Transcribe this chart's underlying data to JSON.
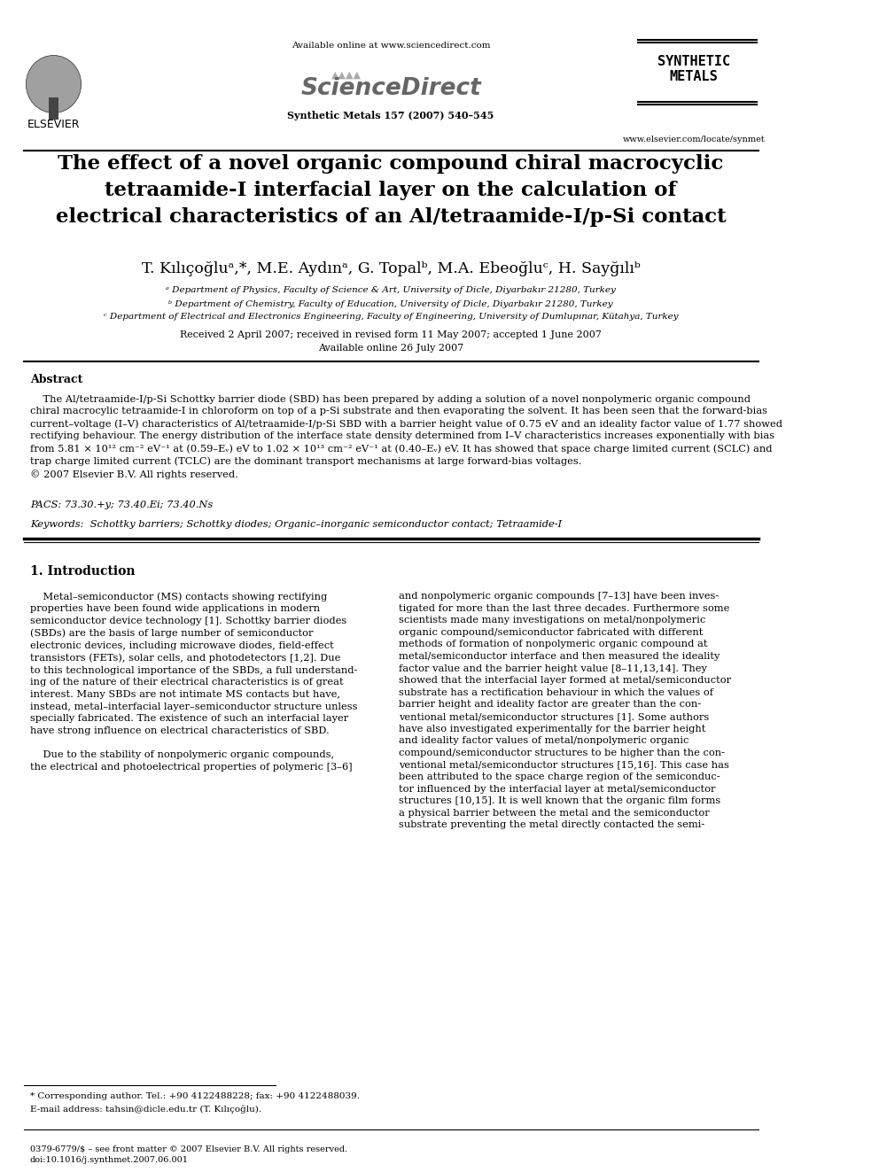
{
  "bg_color": "#ffffff",
  "header": {
    "available_online": "Available online at www.sciencedirect.com",
    "journal_ref": "Synthetic Metals 157 (2007) 540–545",
    "website": "www.elsevier.com/locate/synmet"
  },
  "title": "The effect of a novel organic compound chiral macrocyclic\ntetraamide-I interfacial layer on the calculation of\nelectrical characteristics of an Al/tetraamide-I/p-Si contact",
  "authors": "T. Kılıçoğluᵃ,*, M.E. Aydınᵃ, G. Topalᵇ, M.A. Ebeoğluᶜ, H. Sayğılıᵇ",
  "affil_a": "ᵃ Department of Physics, Faculty of Science & Art, University of Dicle, Diyarbakır 21280, Turkey",
  "affil_b": "ᵇ Department of Chemistry, Faculty of Education, University of Dicle, Diyarbakır 21280, Turkey",
  "affil_c": "ᶜ Department of Electrical and Electronics Engineering, Faculty of Engineering, University of Dumlupınar, Kütahya, Turkey",
  "received": "Received 2 April 2007; received in revised form 11 May 2007; accepted 1 June 2007",
  "available_online2": "Available online 26 July 2007",
  "abstract_title": "Abstract",
  "abstract_text": "The Al/tetraamide-I/p-Si Schottky barrier diode (SBD) has been prepared by adding a solution of a novel nonpolymeric organic compound chiral macrocylic tetraamide-I in chloroform on top of a p-Si substrate and then evaporating the solvent. It has been seen that the forward-bias current–voltage (I–V) characteristics of Al/tetraamide-I/p-Si SBD with a barrier height value of 0.75 eV and an ideality factor value of 1.77 showed rectifying behaviour. The energy distribution of the interface state density determined from I–V characteristics increases exponentially with bias from 5.81 × 10¹² cm⁻² eV⁻¹ at (0.59–Eᵥ) eV to 1.02 × 10¹³ cm⁻² eV⁻¹ at (0.40–Eᵥ) eV. It has showed that space charge limited current (SCLC) and trap charge limited current (TCLC) are the dominant transport mechanisms at large forward-bias voltages.\n© 2007 Elsevier B.V. All rights reserved.",
  "pacs": "PACS: 73.30.+y; 73.40.Ei; 73.40.Ns",
  "keywords": "Keywords:  Schottky barriers; Schottky diodes; Organic–inorganic semiconductor contact; Tetraamide-I",
  "section1_title": "1. Introduction",
  "col1_text": "Metal–semiconductor (MS) contacts showing rectifying properties have been found wide applications in modern semiconductor device technology [1]. Schottky barrier diodes (SBDs) are the basis of large number of semiconductor electronic devices, including microwave diodes, field-effect transistors (FETs), solar cells, and photodetectors [1,2]. Due to this technological importance of the SBDs, a full understanding of the nature of their electrical characteristics is of great interest. Many SBDs are not intimate MS contacts but have, instead, metal–interfacial layer–semiconductor structure unless specially fabricated. The existence of such an interfacial layer have strong influence on electrical characteristics of SBD.\n\n    Due to the stability of nonpolymeric organic compounds, the electrical and photoelectrical properties of polymeric [3–6]",
  "col2_text": "and nonpolymeric organic compounds [7–13] have been investigated for more than the last three decades. Furthermore some scientists made many investigations on metal/nonpolymeric organic compound/semiconductor fabricated with different methods of formation of nonpolymeric organic compound at metal/semiconductor interface and then measured the ideality factor value and the barrier height value [8–11,13,14]. They showed that the interfacial layer formed at metal/semiconductor substrate has a rectification behaviour in which the values of barrier height and ideality factor are greater than the conventional metal/semiconductor structures [1]. Some authors have also investigated experimentally for the barrier height and ideality factor values of metal/nonpolymeric organic compound/semiconductor structures to be higher than the conventional metal/semiconductor structures [15,16]. This case has been attributed to the space charge region of the semiconductor influenced by the interfacial layer at metal/semiconductor structures [10,15]. It is well known that the organic film forms a physical barrier between the metal and the semiconductor substrate preventing the metal directly contacted the semi-",
  "footnote_star": "* Corresponding author. Tel.: +90 4122488228; fax: +90 4122488039.",
  "footnote_email": "E-mail address: tahsin@dicle.edu.tr (T. Kılıçoğlu).",
  "footer_left": "0379-6779/$ – see front matter © 2007 Elsevier B.V. All rights reserved.\ndoi:10.1016/j.synthmet.2007.06.001"
}
